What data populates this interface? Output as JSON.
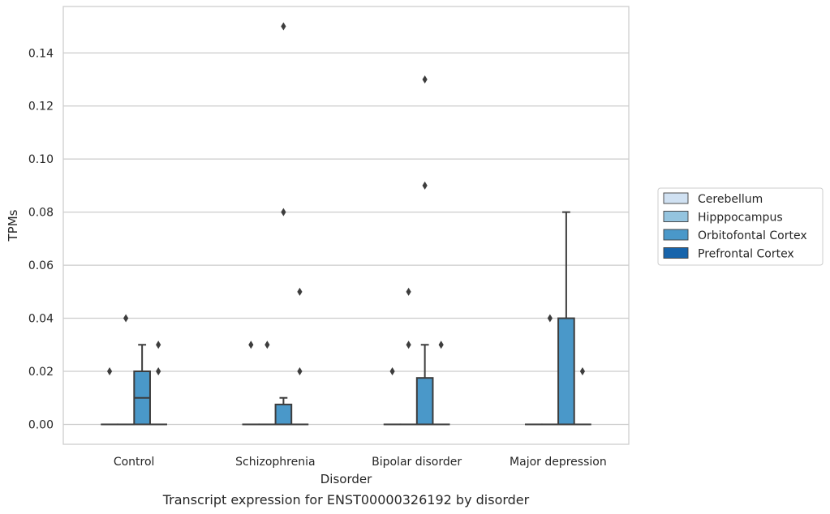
{
  "chart_data": {
    "type": "box",
    "xlabel": "Disorder",
    "ylabel": "TPMs",
    "caption": "Transcript expression for ENST00000326192 by disorder",
    "ylim": [
      -0.0075,
      0.1575
    ],
    "yticks": [
      "0.00",
      "0.02",
      "0.04",
      "0.06",
      "0.08",
      "0.10",
      "0.12",
      "0.14"
    ],
    "ytick_values": [
      0,
      0.02,
      0.04,
      0.06,
      0.08,
      0.1,
      0.12,
      0.14
    ],
    "grid": true,
    "legend_position": "right",
    "categories": [
      "Control",
      "Schizophrenia",
      "Bipolar disorder",
      "Major depression"
    ],
    "series": [
      {
        "name": "Cerebellum",
        "color": "#d0e1f2",
        "boxes": [
          {
            "q1": 0,
            "median": 0,
            "q3": 0,
            "whislo": 0,
            "whishi": 0,
            "fliers": [
              0.02
            ]
          },
          {
            "q1": 0,
            "median": 0,
            "q3": 0,
            "whislo": 0,
            "whishi": 0,
            "fliers": [
              0.03
            ]
          },
          {
            "q1": 0,
            "median": 0,
            "q3": 0,
            "whislo": 0,
            "whishi": 0,
            "fliers": [
              0.02
            ]
          },
          {
            "q1": 0,
            "median": 0,
            "q3": 0,
            "whislo": 0,
            "whishi": 0,
            "fliers": []
          }
        ]
      },
      {
        "name": "Hipppocampus",
        "color": "#94c4df",
        "boxes": [
          {
            "q1": 0,
            "median": 0,
            "q3": 0,
            "whislo": 0,
            "whishi": 0,
            "fliers": [
              0.04
            ]
          },
          {
            "q1": 0,
            "median": 0,
            "q3": 0,
            "whislo": 0,
            "whishi": 0,
            "fliers": [
              0.03
            ]
          },
          {
            "q1": 0,
            "median": 0,
            "q3": 0,
            "whislo": 0,
            "whishi": 0,
            "fliers": [
              0.03,
              0.05
            ]
          },
          {
            "q1": 0,
            "median": 0,
            "q3": 0,
            "whislo": 0,
            "whishi": 0,
            "fliers": [
              0.04
            ]
          }
        ]
      },
      {
        "name": "Orbitofontal Cortex",
        "color": "#4a98c9",
        "boxes": [
          {
            "q1": 0,
            "median": 0.01,
            "q3": 0.02,
            "whislo": 0,
            "whishi": 0.03,
            "fliers": []
          },
          {
            "q1": 0,
            "median": 0,
            "q3": 0.0075,
            "whislo": 0,
            "whishi": 0.01,
            "fliers": [
              0.08,
              0.15
            ]
          },
          {
            "q1": 0,
            "median": 0,
            "q3": 0.0175,
            "whislo": 0,
            "whishi": 0.03,
            "fliers": [
              0.09,
              0.13
            ]
          },
          {
            "q1": 0,
            "median": 0,
            "q3": 0.04,
            "whislo": 0,
            "whishi": 0.08,
            "fliers": []
          }
        ]
      },
      {
        "name": "Prefrontal Cortex",
        "color": "#1764ab",
        "boxes": [
          {
            "q1": 0,
            "median": 0,
            "q3": 0,
            "whislo": 0,
            "whishi": 0,
            "fliers": [
              0.02,
              0.03
            ]
          },
          {
            "q1": 0,
            "median": 0,
            "q3": 0,
            "whislo": 0,
            "whishi": 0,
            "fliers": [
              0.02,
              0.05
            ]
          },
          {
            "q1": 0,
            "median": 0,
            "q3": 0,
            "whislo": 0,
            "whishi": 0,
            "fliers": [
              0.03
            ]
          },
          {
            "q1": 0,
            "median": 0,
            "q3": 0,
            "whislo": 0,
            "whishi": 0,
            "fliers": [
              0.02
            ]
          }
        ]
      }
    ]
  }
}
